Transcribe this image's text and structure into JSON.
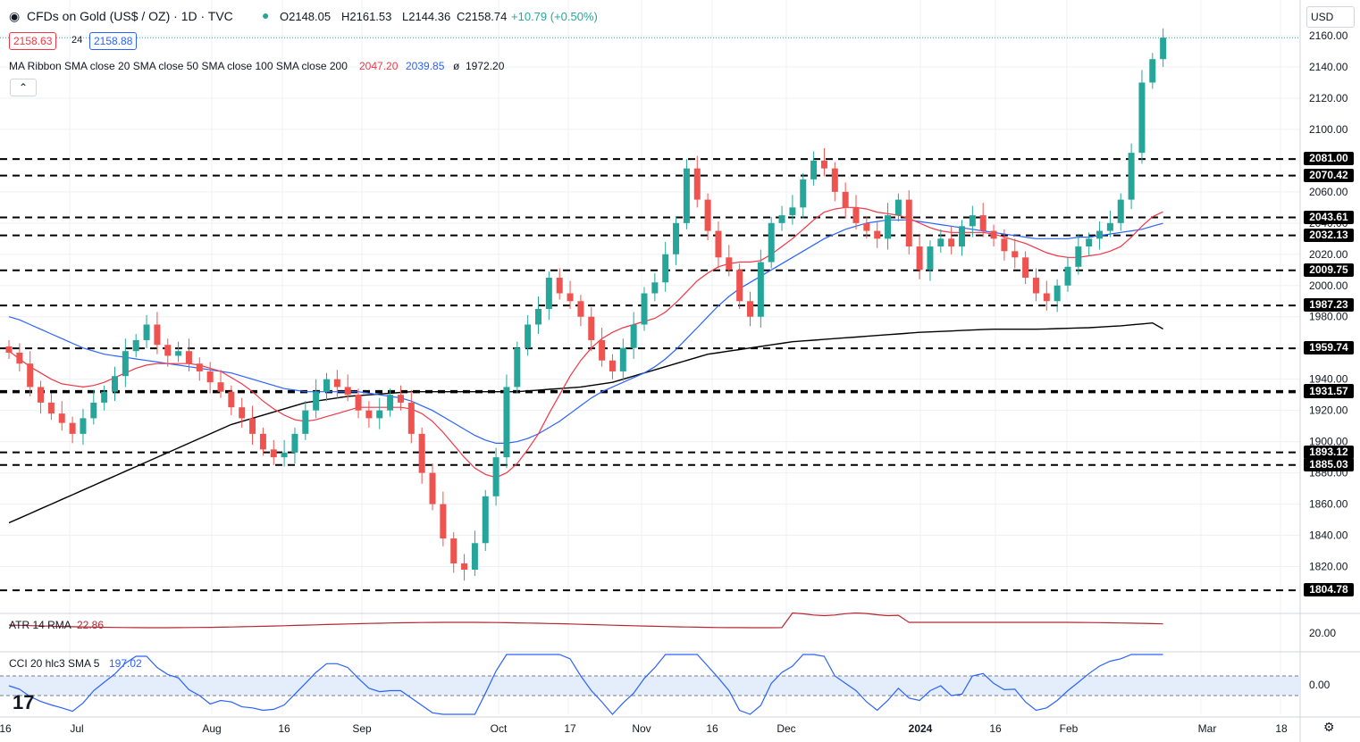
{
  "header": {
    "symbol_title": "CFDs on Gold (US$ / OZ) · 1D · TVC",
    "open": "O2148.05",
    "high": "H2161.53",
    "low": "L2144.36",
    "close": "C2158.74",
    "change": "+10.79 (+0.50%)",
    "bid": "2158.63",
    "spread": "24",
    "ask": "2158.88",
    "currency": "USD",
    "ma_label": "MA Ribbon SMA close 20 SMA close 50 SMA close 100 SMA close 200",
    "ma_v1": "2047.20",
    "ma_v2": "2039.85",
    "ma_v3": "ø",
    "ma_v4": "1972.20",
    "atr_label": "ATR 14 RMA",
    "atr_value": "22.86",
    "cci_label": "CCI 20 hlc3 SMA 5",
    "cci_value": "197.02"
  },
  "colors": {
    "up": "#26a69a",
    "down": "#ef5350",
    "sma20": "#f23645",
    "sma50": "#2962ff",
    "sma200": "#000000",
    "atr": "#b22833",
    "cci": "#2962ff"
  },
  "chart_data": {
    "type": "candlestick",
    "price_axis": {
      "min": 1800,
      "max": 2160,
      "ticks": [
        1820,
        1840,
        1860,
        1880,
        1900,
        1920,
        1940,
        1960,
        1980,
        2000,
        2020,
        2040,
        2060,
        2080,
        2100,
        2120,
        2140,
        2160
      ]
    },
    "x_labels": [
      "16",
      "Jul",
      "Aug",
      "16",
      "Sep",
      "Oct",
      "17",
      "Nov",
      "16",
      "Dec",
      "2024",
      "16",
      "Feb",
      "Mar",
      "18"
    ],
    "levels": [
      "2081.00",
      "2070.42",
      "2043.61",
      "2032.13",
      "2009.75",
      "1987.23",
      "1959.74",
      "1932.49",
      "1931.57",
      "1893.12",
      "1885.03",
      "1804.78"
    ],
    "close_path": [
      1957,
      1950,
      1935,
      1925,
      1918,
      1912,
      1905,
      1915,
      1925,
      1932,
      1942,
      1958,
      1965,
      1975,
      1962,
      1955,
      1958,
      1950,
      1945,
      1938,
      1932,
      1922,
      1915,
      1905,
      1895,
      1890,
      1893,
      1905,
      1920,
      1932,
      1940,
      1935,
      1930,
      1920,
      1915,
      1920,
      1930,
      1925,
      1905,
      1880,
      1860,
      1838,
      1822,
      1818,
      1835,
      1865,
      1890,
      1935,
      1960,
      1975,
      1985,
      2005,
      1995,
      1990,
      1980,
      1965,
      1952,
      1945,
      1960,
      1975,
      1995,
      2002,
      2020,
      2040,
      2075,
      2055,
      2035,
      2018,
      2010,
      1990,
      1980,
      2015,
      2040,
      2045,
      2050,
      2068,
      2080,
      2075,
      2060,
      2050,
      2040,
      2035,
      2030,
      2045,
      2055,
      2025,
      2010,
      2025,
      2030,
      2025,
      2038,
      2045,
      2035,
      2030,
      2022,
      2018,
      2005,
      1995,
      1990,
      2000,
      2012,
      2025,
      2030,
      2035,
      2040,
      2055,
      2085,
      2130,
      2145,
      2158.74
    ],
    "ma20": [
      1958,
      1953,
      1948,
      1944,
      1940,
      1937,
      1936,
      1935,
      1936,
      1938,
      1941,
      1944,
      1947,
      1949,
      1950,
      1950,
      1950,
      1950,
      1949,
      1947,
      1945,
      1941,
      1937,
      1932,
      1926,
      1921,
      1917,
      1914,
      1913,
      1914,
      1916,
      1918,
      1920,
      1922,
      1922,
      1922,
      1922,
      1922,
      1921,
      1918,
      1913,
      1906,
      1898,
      1890,
      1883,
      1879,
      1877,
      1880,
      1886,
      1895,
      1905,
      1918,
      1930,
      1942,
      1952,
      1960,
      1966,
      1970,
      1973,
      1975,
      1977,
      1979,
      1983,
      1989,
      1996,
      2003,
      2008,
      2012,
      2014,
      2015,
      2015,
      2016,
      2020,
      2025,
      2030,
      2036,
      2042,
      2047,
      2049,
      2050,
      2050,
      2049,
      2047,
      2046,
      2045,
      2043,
      2040,
      2037,
      2035,
      2034,
      2034,
      2034,
      2034,
      2033,
      2031,
      2029,
      2027,
      2024,
      2021,
      2019,
      2018,
      2018,
      2019,
      2020,
      2022,
      2025,
      2031,
      2038,
      2044,
      2047.2
    ],
    "ma50": [
      1980,
      1978,
      1975,
      1972,
      1969,
      1966,
      1963,
      1960,
      1958,
      1956,
      1955,
      1954,
      1953,
      1952,
      1951,
      1950,
      1949,
      1948,
      1947,
      1946,
      1945,
      1944,
      1942,
      1940,
      1938,
      1936,
      1934,
      1933,
      1932,
      1932,
      1932,
      1932,
      1932,
      1932,
      1931,
      1930,
      1929,
      1928,
      1926,
      1923,
      1920,
      1916,
      1912,
      1908,
      1904,
      1901,
      1899,
      1899,
      1900,
      1902,
      1905,
      1909,
      1913,
      1918,
      1923,
      1928,
      1932,
      1935,
      1938,
      1941,
      1944,
      1948,
      1953,
      1959,
      1966,
      1973,
      1980,
      1987,
      1993,
      1998,
      2002,
      2006,
      2010,
      2014,
      2018,
      2022,
      2026,
      2030,
      2033,
      2036,
      2038,
      2040,
      2041,
      2042,
      2042,
      2042,
      2041,
      2040,
      2039,
      2038,
      2037,
      2036,
      2035,
      2034,
      2033,
      2032,
      2031,
      2030,
      2030,
      2030,
      2030,
      2031,
      2031,
      2032,
      2033,
      2034,
      2035,
      2036,
      2038,
      2039.85
    ],
    "ma200": [
      1848,
      1851,
      1854,
      1857,
      1860,
      1863,
      1866,
      1869,
      1872,
      1875,
      1878,
      1881,
      1884,
      1887,
      1890,
      1893,
      1896,
      1899,
      1902,
      1905,
      1908,
      1911,
      1913,
      1915,
      1917,
      1919,
      1921,
      1923,
      1925,
      1926,
      1927,
      1928,
      1929,
      1929.5,
      1930,
      1930.5,
      1931,
      1931.5,
      1932,
      1932,
      1932,
      1932,
      1932,
      1932,
      1932,
      1932,
      1932,
      1932,
      1932,
      1932.5,
      1933,
      1933.5,
      1934,
      1934.5,
      1935,
      1936,
      1937,
      1938,
      1940,
      1942,
      1944,
      1946,
      1948,
      1950,
      1952,
      1954,
      1956,
      1957,
      1958,
      1959,
      1960,
      1961,
      1962,
      1963,
      1964,
      1964.5,
      1965,
      1965.5,
      1966,
      1966.5,
      1967,
      1967.5,
      1968,
      1968.5,
      1969,
      1969.5,
      1970,
      1970.3,
      1970.6,
      1970.9,
      1971.2,
      1971.5,
      1971.8,
      1972,
      1972,
      1972,
      1972,
      1972,
      1972.2,
      1972.4,
      1972.6,
      1972.8,
      1973,
      1973.4,
      1973.8,
      1974.2,
      1974.8,
      1975.4,
      1976,
      1972.2
    ]
  }
}
